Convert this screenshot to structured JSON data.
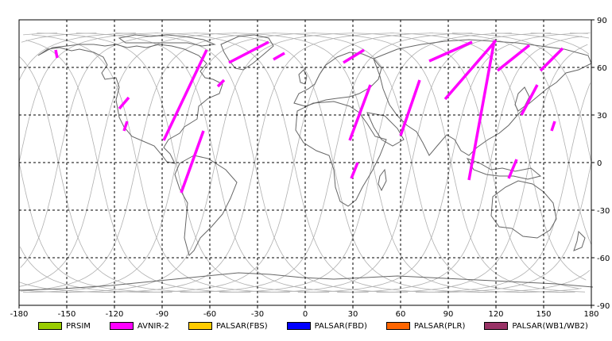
{
  "map": {
    "x_range": [
      -180,
      180
    ],
    "y_range": [
      -90,
      90
    ],
    "x_ticks": [
      "-180",
      "-150",
      "-120",
      "-90",
      "-60",
      "-30",
      "0",
      "30",
      "60",
      "90",
      "120",
      "150",
      "180"
    ],
    "y_ticks": [
      "90",
      "60",
      "30",
      "0",
      "-30",
      "-60",
      "-90"
    ],
    "x_tick_values": [
      -180,
      -150,
      -120,
      -90,
      -60,
      -30,
      0,
      30,
      60,
      90,
      120,
      150,
      180
    ],
    "y_tick_values": [
      90,
      60,
      30,
      0,
      -30,
      -60,
      -90
    ],
    "grid": "dashed",
    "colors": {
      "frame": "#000000",
      "grid": "#000000",
      "coastline": "#666666",
      "orbit": "#b0b0b0",
      "observation": "#ff00ff"
    }
  },
  "legend": [
    {
      "label": "PRSIM",
      "color": "#99cc00"
    },
    {
      "label": "AVNIR-2",
      "color": "#ff00ff"
    },
    {
      "label": "PALSAR(FBS)",
      "color": "#ffcc00"
    },
    {
      "label": "PALSAR(FBD)",
      "color": "#0000ff"
    },
    {
      "label": "PALSAR(PLR)",
      "color": "#ff6600"
    },
    {
      "label": "PALSAR(WB1/WB2)",
      "color": "#993366"
    }
  ],
  "observations": [
    {
      "sensor": "AVNIR-2",
      "lon1": -157,
      "lat1": 71,
      "lon2": -156,
      "lat2": 66
    },
    {
      "sensor": "AVNIR-2",
      "lon1": -62,
      "lat1": 71,
      "lon2": -89,
      "lat2": 14
    },
    {
      "sensor": "AVNIR-2",
      "lon1": -111,
      "lat1": 41,
      "lon2": -117,
      "lat2": 34
    },
    {
      "sensor": "AVNIR-2",
      "lon1": -112,
      "lat1": 26,
      "lon2": -114,
      "lat2": 20
    },
    {
      "sensor": "AVNIR-2",
      "lon1": -64,
      "lat1": 20,
      "lon2": -78,
      "lat2": -19
    },
    {
      "sensor": "AVNIR-2",
      "lon1": -23,
      "lat1": 76,
      "lon2": -48,
      "lat2": 63
    },
    {
      "sensor": "AVNIR-2",
      "lon1": -51,
      "lat1": 52,
      "lon2": -55,
      "lat2": 48
    },
    {
      "sensor": "AVNIR-2",
      "lon1": -13,
      "lat1": 69,
      "lon2": -20,
      "lat2": 65
    },
    {
      "sensor": "AVNIR-2",
      "lon1": 37,
      "lat1": 71,
      "lon2": 24,
      "lat2": 63
    },
    {
      "sensor": "AVNIR-2",
      "lon1": 41,
      "lat1": 49,
      "lon2": 28,
      "lat2": 14
    },
    {
      "sensor": "AVNIR-2",
      "lon1": 33,
      "lat1": 0,
      "lon2": 29,
      "lat2": -10
    },
    {
      "sensor": "AVNIR-2",
      "lon1": 105,
      "lat1": 76,
      "lon2": 78,
      "lat2": 64
    },
    {
      "sensor": "AVNIR-2",
      "lon1": 72,
      "lat1": 52,
      "lon2": 60,
      "lat2": 17
    },
    {
      "sensor": "AVNIR-2",
      "lon1": 120,
      "lat1": 77,
      "lon2": 88,
      "lat2": 40
    },
    {
      "sensor": "AVNIR-2",
      "lon1": 119,
      "lat1": 77,
      "lon2": 103,
      "lat2": -11
    },
    {
      "sensor": "AVNIR-2",
      "lon1": 141,
      "lat1": 74,
      "lon2": 121,
      "lat2": 58
    },
    {
      "sensor": "AVNIR-2",
      "lon1": 162,
      "lat1": 72,
      "lon2": 148,
      "lat2": 58
    },
    {
      "sensor": "AVNIR-2",
      "lon1": 146,
      "lat1": 49,
      "lon2": 136,
      "lat2": 30
    },
    {
      "sensor": "AVNIR-2",
      "lon1": 133,
      "lat1": 2,
      "lon2": 128,
      "lat2": -10
    },
    {
      "sensor": "AVNIR-2",
      "lon1": 157,
      "lat1": 26,
      "lon2": 155,
      "lat2": 20
    }
  ]
}
